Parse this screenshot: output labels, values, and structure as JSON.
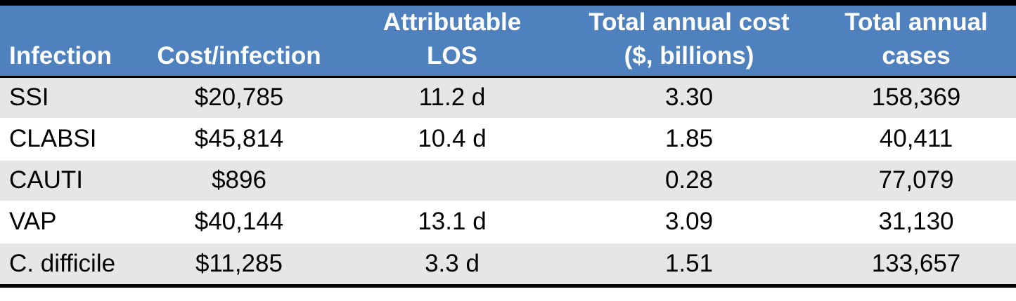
{
  "colors": {
    "header_background": "#4E81BD",
    "header_text": "#FFFFFF",
    "banded_row_background": "#E6E6E6",
    "plain_row_background": "#FFFFFF",
    "body_text": "#000000",
    "border": "#000000"
  },
  "table": {
    "header_labels": [
      "Infection",
      "Cost/infection",
      "Attributable\nLOS",
      "Total annual cost\n($, billions)",
      "Total annual\ncases"
    ]
  },
  "chart_data": {
    "type": "table",
    "title": "",
    "columns": [
      "Infection",
      "Cost/infection",
      "Attributable LOS",
      "Total annual cost ($, billions)",
      "Total annual cases"
    ],
    "rows": [
      [
        "SSI",
        "$20,785",
        "11.2 d",
        "3.30",
        "158,369"
      ],
      [
        "CLABSI",
        "$45,814",
        "10.4 d",
        "1.85",
        "40,411"
      ],
      [
        "CAUTI",
        "$896",
        "",
        "0.28",
        "77,079"
      ],
      [
        "VAP",
        "$40,144",
        "13.1 d",
        "3.09",
        "31,130"
      ],
      [
        "C. difficile",
        "$11,285",
        "3.3 d",
        "1.51",
        "133,657"
      ]
    ]
  }
}
